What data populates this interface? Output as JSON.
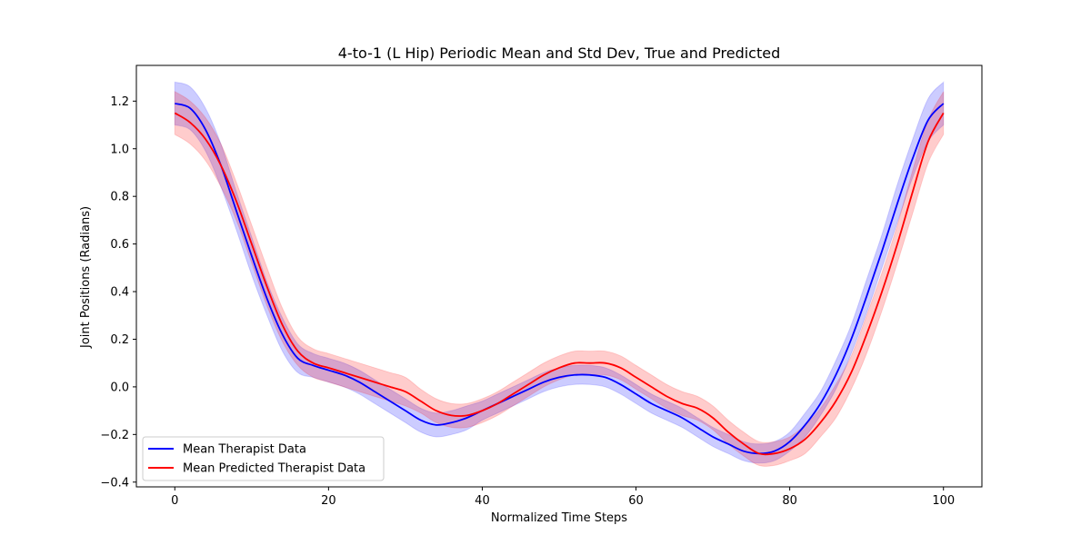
{
  "chart_data": {
    "type": "line",
    "title": "4-to-1 (L Hip) Periodic Mean and Std Dev, True and Predicted",
    "xlabel": "Normalized Time Steps",
    "ylabel": "Joint Positions (Radians)",
    "xlim": [
      -5,
      105
    ],
    "ylim": [
      -0.42,
      1.35
    ],
    "xticks": [
      0,
      20,
      40,
      60,
      80,
      100
    ],
    "yticks": [
      -0.4,
      -0.2,
      0.0,
      0.2,
      0.4,
      0.6,
      0.8,
      1.0,
      1.2
    ],
    "xtick_labels": [
      "0",
      "20",
      "40",
      "60",
      "80",
      "100"
    ],
    "ytick_labels": [
      "−0.4",
      "−0.2",
      "0.0",
      "0.2",
      "0.4",
      "0.6",
      "0.8",
      "1.0",
      "1.2"
    ],
    "grid": false,
    "legend_position": "lower-left",
    "x": [
      0,
      2,
      4,
      6,
      8,
      10,
      12,
      14,
      16,
      18,
      20,
      22,
      24,
      26,
      28,
      30,
      32,
      34,
      36,
      38,
      40,
      42,
      44,
      46,
      48,
      50,
      52,
      54,
      56,
      58,
      60,
      62,
      64,
      66,
      68,
      70,
      72,
      74,
      76,
      78,
      80,
      82,
      84,
      86,
      88,
      90,
      92,
      94,
      96,
      98,
      100
    ],
    "series": [
      {
        "name": "Mean Therapist Data",
        "color": "#0000ff",
        "band_color": "#0000ff",
        "values": [
          1.19,
          1.17,
          1.08,
          0.93,
          0.74,
          0.55,
          0.37,
          0.22,
          0.12,
          0.09,
          0.07,
          0.05,
          0.02,
          -0.02,
          -0.06,
          -0.1,
          -0.14,
          -0.16,
          -0.15,
          -0.13,
          -0.1,
          -0.07,
          -0.04,
          -0.01,
          0.02,
          0.04,
          0.05,
          0.05,
          0.04,
          0.01,
          -0.03,
          -0.07,
          -0.1,
          -0.13,
          -0.17,
          -0.21,
          -0.24,
          -0.27,
          -0.28,
          -0.27,
          -0.23,
          -0.16,
          -0.07,
          0.05,
          0.2,
          0.38,
          0.57,
          0.77,
          0.96,
          1.12,
          1.19
        ],
        "std": [
          0.09,
          0.09,
          0.09,
          0.09,
          0.08,
          0.08,
          0.07,
          0.07,
          0.06,
          0.05,
          0.05,
          0.05,
          0.05,
          0.05,
          0.05,
          0.05,
          0.05,
          0.05,
          0.05,
          0.05,
          0.04,
          0.04,
          0.04,
          0.04,
          0.04,
          0.04,
          0.04,
          0.04,
          0.04,
          0.04,
          0.04,
          0.04,
          0.04,
          0.04,
          0.04,
          0.04,
          0.04,
          0.04,
          0.04,
          0.04,
          0.04,
          0.05,
          0.05,
          0.06,
          0.06,
          0.07,
          0.07,
          0.08,
          0.08,
          0.09,
          0.09
        ]
      },
      {
        "name": "Mean Predicted Therapist Data",
        "color": "#ff0000",
        "band_color": "#ff0000",
        "values": [
          1.15,
          1.11,
          1.04,
          0.93,
          0.78,
          0.6,
          0.42,
          0.26,
          0.15,
          0.1,
          0.08,
          0.06,
          0.04,
          0.02,
          0.0,
          -0.02,
          -0.06,
          -0.1,
          -0.12,
          -0.12,
          -0.1,
          -0.07,
          -0.03,
          0.01,
          0.05,
          0.08,
          0.1,
          0.1,
          0.1,
          0.08,
          0.04,
          0.0,
          -0.04,
          -0.07,
          -0.09,
          -0.13,
          -0.19,
          -0.24,
          -0.28,
          -0.28,
          -0.26,
          -0.22,
          -0.15,
          -0.06,
          0.06,
          0.22,
          0.4,
          0.6,
          0.82,
          1.03,
          1.15
        ],
        "std": [
          0.09,
          0.09,
          0.09,
          0.09,
          0.08,
          0.08,
          0.08,
          0.07,
          0.06,
          0.06,
          0.06,
          0.06,
          0.06,
          0.06,
          0.06,
          0.06,
          0.05,
          0.05,
          0.05,
          0.05,
          0.05,
          0.05,
          0.05,
          0.05,
          0.05,
          0.05,
          0.05,
          0.05,
          0.05,
          0.05,
          0.05,
          0.05,
          0.05,
          0.05,
          0.05,
          0.05,
          0.05,
          0.05,
          0.05,
          0.05,
          0.05,
          0.06,
          0.06,
          0.07,
          0.07,
          0.08,
          0.08,
          0.08,
          0.09,
          0.09,
          0.09
        ]
      }
    ]
  }
}
